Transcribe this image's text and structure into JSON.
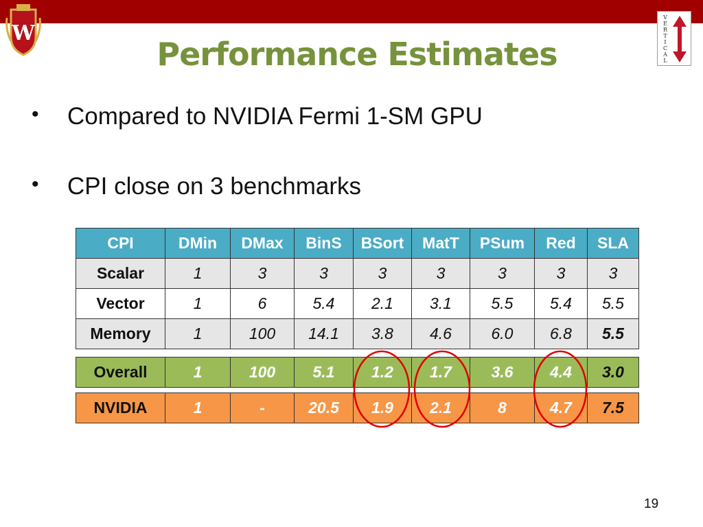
{
  "slide": {
    "title": "Performance Estimates",
    "bullets": [
      "Compared to NVIDIA Fermi 1-SM GPU",
      "CPI close on 3 benchmarks"
    ],
    "page_number": "19",
    "logo_right_text": "VERTICAL",
    "colors": {
      "top_bar": "#a00000",
      "title": "#76923c",
      "header": "#4bacc6",
      "overall_row": "#9bbb59",
      "nvidia_row": "#f79646",
      "circle": "#e00000"
    }
  },
  "table": {
    "headers": [
      "CPI",
      "DMin",
      "DMax",
      "BinS",
      "BSort",
      "MatT",
      "PSum",
      "Red",
      "SLA"
    ],
    "rows": [
      {
        "label": "Scalar",
        "values": [
          "1",
          "3",
          "3",
          "3",
          "3",
          "3",
          "3",
          "3"
        ]
      },
      {
        "label": "Vector",
        "values": [
          "1",
          "6",
          "5.4",
          "2.1",
          "3.1",
          "5.5",
          "5.4",
          "5.5"
        ]
      },
      {
        "label": "Memory",
        "values": [
          "1",
          "100",
          "14.1",
          "3.8",
          "4.6",
          "6.0",
          "6.8",
          "5.5"
        ]
      }
    ],
    "overall": {
      "label": "Overall",
      "values": [
        "1",
        "100",
        "5.1",
        "1.2",
        "1.7",
        "3.6",
        "4.4",
        "3.0"
      ]
    },
    "nvidia": {
      "label": "NVIDIA",
      "values": [
        "1",
        "-",
        "20.5",
        "1.9",
        "2.1",
        "8",
        "4.7",
        "7.5"
      ]
    },
    "highlighted_columns": [
      "BSort",
      "MatT",
      "Red"
    ]
  }
}
